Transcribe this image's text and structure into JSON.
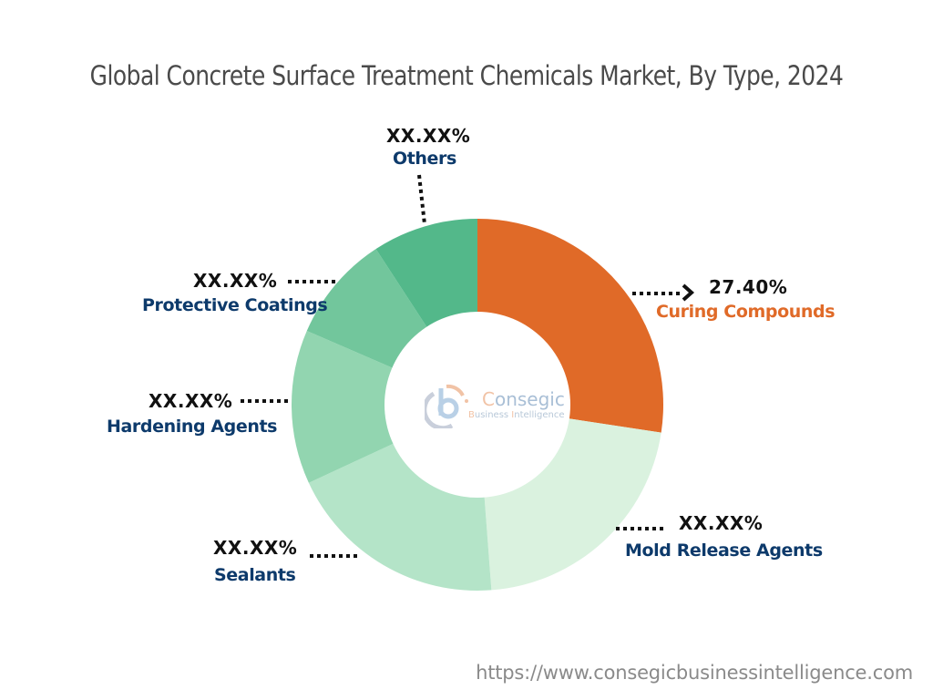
{
  "title": "Global Concrete Surface Treatment Chemicals Market, By Type, 2024",
  "footer_url": "https://www.consegicbusinessintelligence.com",
  "logo": {
    "name_initial": "C",
    "name_rest": "onsegic",
    "sub_b": "B",
    "sub_mid": "usiness ",
    "sub_i": "I",
    "sub_rest": "ntelligence"
  },
  "labels": {
    "others": {
      "pct": "XX.XX%",
      "name": "Others"
    },
    "protective": {
      "pct": "XX.XX%",
      "name": "Protective Coatings"
    },
    "hardening": {
      "pct": "XX.XX%",
      "name": "Hardening Agents"
    },
    "sealants": {
      "pct": "XX.XX%",
      "name": "Sealants"
    },
    "mold": {
      "pct": "XX.XX%",
      "name": "Mold Release Agents"
    },
    "curing": {
      "pct": "27.40%",
      "name": "Curing Compounds"
    }
  },
  "chart_data": {
    "type": "pie",
    "subtype": "donut",
    "title": "Global Concrete Surface Treatment Chemicals Market, By Type, 2024",
    "categories": [
      "Curing Compounds",
      "Mold Release Agents",
      "Sealants",
      "Hardening Agents",
      "Protective Coatings",
      "Others"
    ],
    "values": [
      27.4,
      21.4,
      19.3,
      13.4,
      9.3,
      9.2
    ],
    "value_labels": [
      "27.40%",
      "XX.XX%",
      "XX.XX%",
      "XX.XX%",
      "XX.XX%",
      "XX.XX%"
    ],
    "colors": [
      "#e06a28",
      "#daf2df",
      "#b4e4c8",
      "#92d5b0",
      "#72c69c",
      "#53b88a"
    ],
    "start_angle_deg": 0,
    "direction": "clockwise",
    "inner_radius_ratio": 0.5,
    "legend": "none (leader-line labels)",
    "note": "Only Curing Compounds value is disclosed; other values estimated from slice angles"
  }
}
